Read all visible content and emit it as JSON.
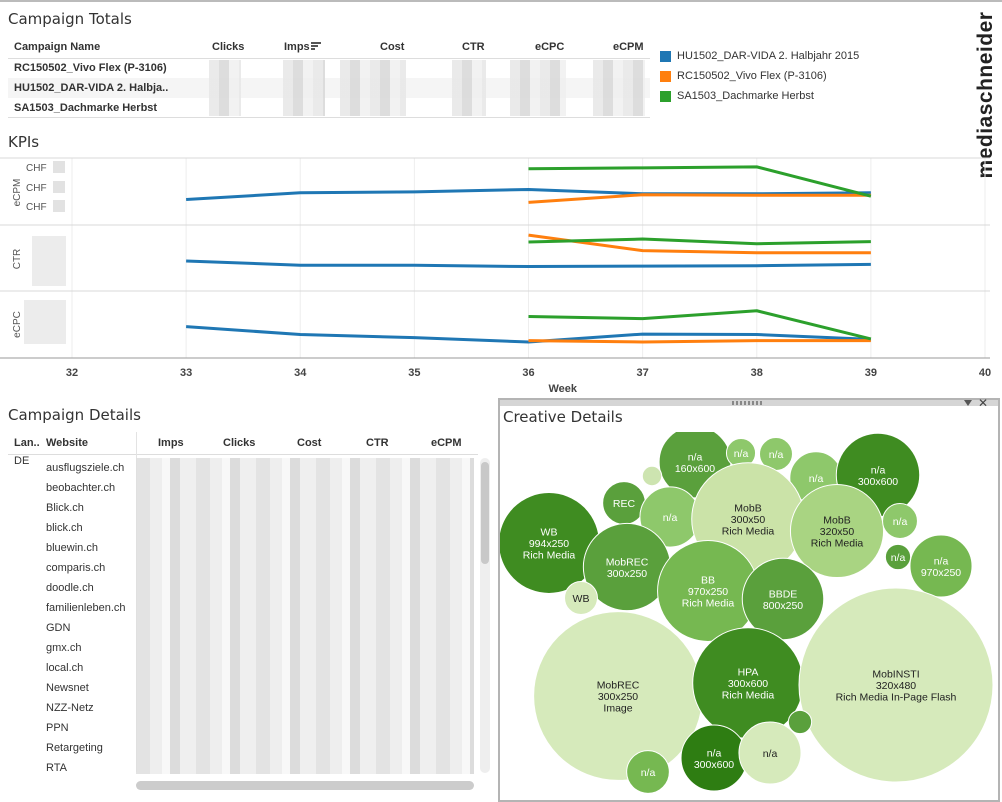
{
  "brand": "mediaschneider",
  "campaign_totals": {
    "title": "Campaign Totals",
    "headers": [
      "Campaign Name",
      "Clicks",
      "Imps",
      "Cost",
      "CTR",
      "eCPC",
      "eCPM"
    ],
    "rows": [
      "RC150502_Vivo Flex (P-3106)",
      "HU1502_DAR-VIDA 2. Halbja..",
      "SA1503_Dachmarke Herbst"
    ]
  },
  "legend": [
    {
      "label": "HU1502_DAR-VIDA 2. Halbjahr 2015",
      "color": "#1f77b4"
    },
    {
      "label": "RC150502_Vivo Flex (P-3106)",
      "color": "#ff7f0e"
    },
    {
      "label": "SA1503_Dachmarke Herbst",
      "color": "#2ca02c"
    }
  ],
  "kpis": {
    "title": "KPIs",
    "ecpm_tick": "CHF",
    "row_labels": [
      "eCPM",
      "CTR",
      "eCPC"
    ],
    "xlabel": "Week"
  },
  "chart_data": [
    {
      "type": "line",
      "title": "KPIs",
      "xlabel": "Week",
      "x_ticks": [
        32,
        33,
        34,
        35,
        36,
        37,
        38,
        39,
        40
      ],
      "xlim": [
        32,
        40
      ],
      "grid": true,
      "panels": [
        {
          "ylabel": "eCPM",
          "series": [
            {
              "name": "HU1502_DAR-VIDA 2. Halbjahr 2015",
              "x": [
                33,
                34,
                35,
                36,
                37,
                38,
                39
              ],
              "y": [
                0.26,
                0.4,
                0.42,
                0.47,
                0.38,
                0.38,
                0.4
              ]
            },
            {
              "name": "RC150502_Vivo Flex (P-3106)",
              "x": [
                36,
                37,
                38,
                39
              ],
              "y": [
                0.2,
                0.36,
                0.35,
                0.35
              ]
            },
            {
              "name": "SA1503_Dachmarke Herbst",
              "x": [
                36,
                37,
                38,
                39
              ],
              "y": [
                0.9,
                0.92,
                0.94,
                0.33
              ]
            }
          ]
        },
        {
          "ylabel": "CTR",
          "series": [
            {
              "name": "HU1502_DAR-VIDA 2. Halbjahr 2015",
              "x": [
                33,
                34,
                35,
                36,
                37,
                38,
                39
              ],
              "y": [
                0.28,
                0.18,
                0.18,
                0.15,
                0.16,
                0.17,
                0.2
              ]
            },
            {
              "name": "RC150502_Vivo Flex (P-3106)",
              "x": [
                36,
                37,
                38,
                39
              ],
              "y": [
                0.88,
                0.52,
                0.47,
                0.47
              ]
            },
            {
              "name": "SA1503_Dachmarke Herbst",
              "x": [
                36,
                37,
                38,
                39
              ],
              "y": [
                0.72,
                0.79,
                0.68,
                0.73
              ]
            }
          ]
        },
        {
          "ylabel": "eCPC",
          "series": [
            {
              "name": "HU1502_DAR-VIDA 2. Halbjahr 2015",
              "x": [
                33,
                34,
                35,
                36,
                37,
                38,
                39
              ],
              "y": [
                0.35,
                0.17,
                0.1,
                0.0,
                0.18,
                0.17,
                0.06
              ]
            },
            {
              "name": "RC150502_Vivo Flex (P-3106)",
              "x": [
                36,
                37,
                38,
                39
              ],
              "y": [
                0.03,
                0.0,
                0.03,
                0.03
              ]
            },
            {
              "name": "SA1503_Dachmarke Herbst",
              "x": [
                36,
                37,
                38,
                39
              ],
              "y": [
                0.58,
                0.53,
                0.71,
                0.07
              ]
            }
          ]
        }
      ]
    },
    {
      "type": "bubble",
      "title": "Creative Details",
      "bubbles": [
        {
          "label": "n/a\n160x600",
          "value": 0.37,
          "shade": "#5aa03c"
        },
        {
          "label": "n/a",
          "value": 0.15,
          "shade": "#8ec86b"
        },
        {
          "label": "n/a",
          "value": 0.17,
          "shade": "#8ec86b"
        },
        {
          "label": "",
          "value": 0.1,
          "shade": "#cde4b0"
        },
        {
          "label": "n/a",
          "value": 0.27,
          "shade": "#8ec86b"
        },
        {
          "label": "n/a\n300x600",
          "value": 0.43,
          "shade": "#3f8c21"
        },
        {
          "label": "REC",
          "value": 0.22,
          "shade": "#5aa03c"
        },
        {
          "label": "n/a",
          "value": 0.31,
          "shade": "#8ec86b"
        },
        {
          "label": "MobB\n300x50\nRich Media",
          "value": 0.58,
          "shade": "#cbe3a8"
        },
        {
          "label": "MobB\n320x50\nRich Media",
          "value": 0.48,
          "shade": "#a9d482"
        },
        {
          "label": "n/a",
          "value": 0.18,
          "shade": "#8ec86b"
        },
        {
          "label": "WB\n994x250\nRich Media",
          "value": 0.52,
          "shade": "#3f8c21"
        },
        {
          "label": "MobREC\n300x250",
          "value": 0.45,
          "shade": "#5aa03c"
        },
        {
          "label": "BB\n970x250\nRich Media",
          "value": 0.52,
          "shade": "#76b851"
        },
        {
          "label": "BBDE\n800x250",
          "value": 0.42,
          "shade": "#5aa03c"
        },
        {
          "label": "n/a",
          "value": 0.13,
          "shade": "#5aa03c"
        },
        {
          "label": "n/a\n970x250",
          "value": 0.32,
          "shade": "#76b851"
        },
        {
          "label": "WB",
          "value": 0.17,
          "shade": "#d6eabb"
        },
        {
          "label": "MobREC\n300x250\nImage",
          "value": 0.87,
          "shade": "#d6eabb"
        },
        {
          "label": "HPA\n300x600\nRich Media",
          "value": 0.57,
          "shade": "#3f8c21"
        },
        {
          "label": "MobINSTI\n320x480\nRich Media In-Page Flash",
          "value": 1.0,
          "shade": "#d6eabb"
        },
        {
          "label": "",
          "value": 0.12,
          "shade": "#5aa03c"
        },
        {
          "label": "n/a",
          "value": 0.22,
          "shade": "#76b851"
        },
        {
          "label": "n/a\n300x600",
          "value": 0.34,
          "shade": "#2e7d12"
        },
        {
          "label": "n/a",
          "value": 0.32,
          "shade": "#d6eabb"
        }
      ]
    }
  ],
  "campaign_details": {
    "title": "Campaign Details",
    "headers": [
      "Lan..",
      "Website",
      "Imps",
      "Clicks",
      "Cost",
      "CTR",
      "eCPM"
    ],
    "lang": "DE",
    "websites": [
      "ausflugsziele.ch",
      "beobachter.ch",
      "Blick.ch",
      "blick.ch",
      "bluewin.ch",
      "comparis.ch",
      "doodle.ch",
      "familienleben.ch",
      "GDN",
      "gmx.ch",
      "local.ch",
      "Newsnet",
      "NZZ-Netz",
      "PPN",
      "Retargeting",
      "RTA"
    ]
  },
  "creative_details": {
    "title": "Creative Details"
  }
}
